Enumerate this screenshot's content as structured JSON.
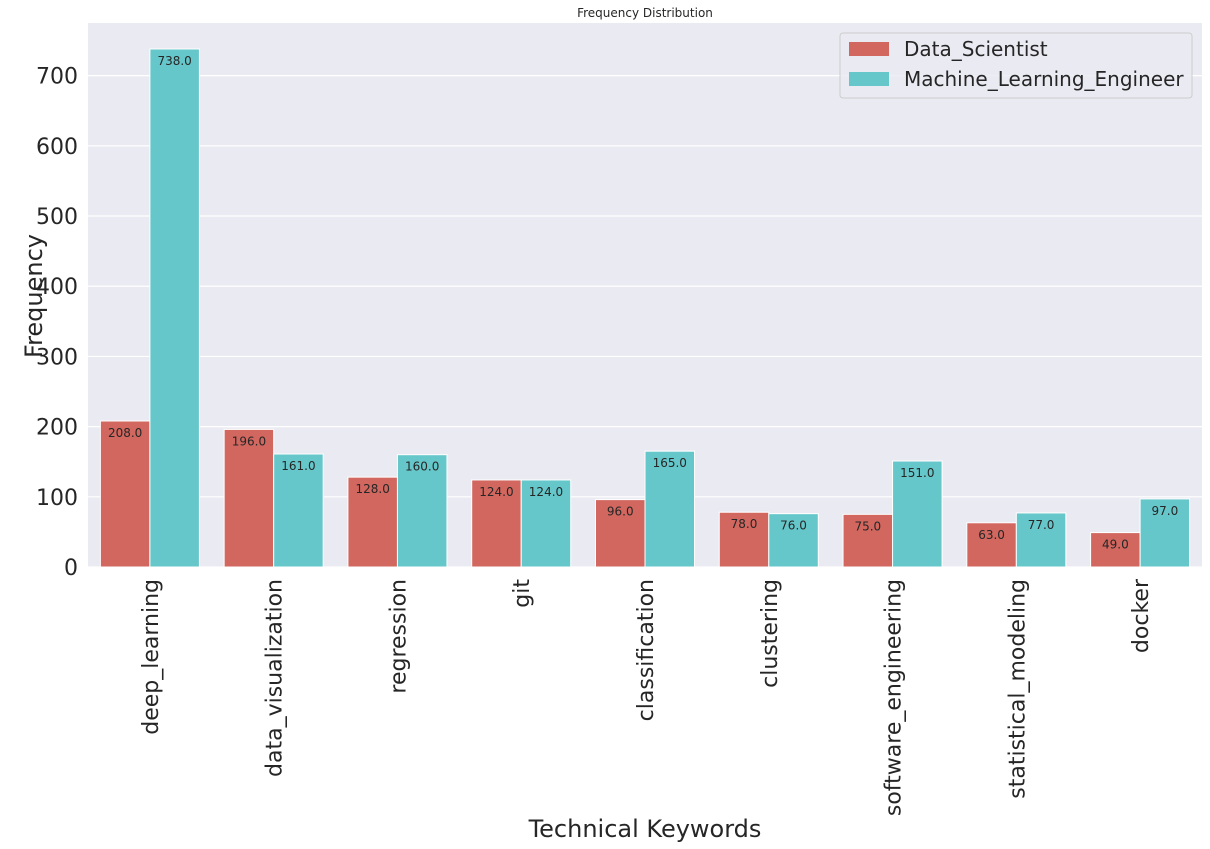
{
  "chart_data": {
    "type": "bar",
    "title": "Frequency Distribution",
    "xlabel": "Technical Keywords",
    "ylabel": "Frequency",
    "categories": [
      "deep_learning",
      "data_visualization",
      "regression",
      "git",
      "classification",
      "clustering",
      "software_engineering",
      "statistical_modeling",
      "docker"
    ],
    "series": [
      {
        "name": "Data_Scientist",
        "values": [
          208,
          196,
          128,
          124,
          96,
          78,
          75,
          63,
          49
        ]
      },
      {
        "name": "Machine_Learning_Engineer",
        "values": [
          738,
          161,
          160,
          124,
          165,
          76,
          151,
          77,
          97
        ]
      }
    ],
    "data_labels": [
      [
        "208.0",
        "196.0",
        "128.0",
        "124.0",
        "96.0",
        "78.0",
        "75.0",
        "63.0",
        "49.0"
      ],
      [
        "738.0",
        "161.0",
        "160.0",
        "124.0",
        "165.0",
        "76.0",
        "151.0",
        "77.0",
        "97.0"
      ]
    ],
    "yticks": [
      0,
      100,
      200,
      300,
      400,
      500,
      600,
      700
    ],
    "ylim": [
      0,
      775
    ],
    "grid": true,
    "legend_position": "top-right",
    "colors": [
      "#d1675f",
      "#66c7cb"
    ],
    "background": "#eaeaf2",
    "grid_color": "#ffffff"
  }
}
